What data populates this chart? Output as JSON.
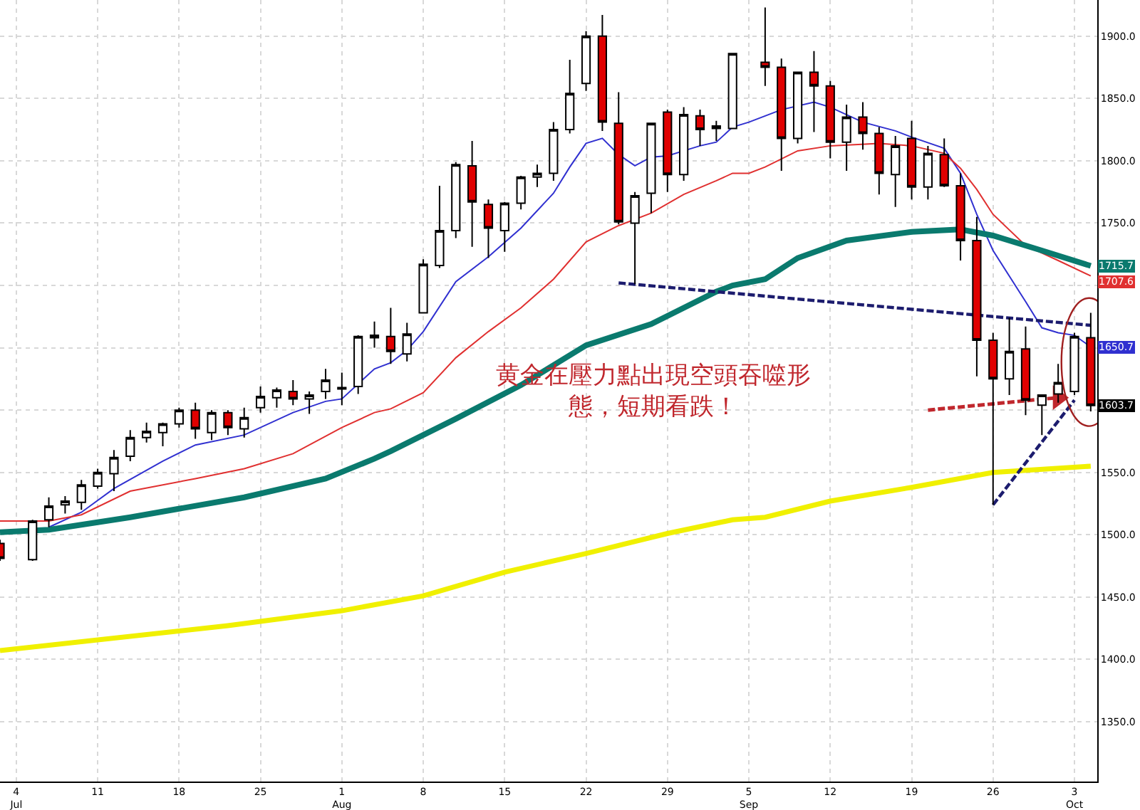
{
  "chart_data": {
    "type": "candlestick",
    "annotations": [
      "黄金在壓力點出現空頭吞噬形態，短期看跌！",
      {
        "text": "1603.7",
        "y": 1603.7
      }
    ],
    "categories": [
      null,
      "4\nJul",
      null,
      null,
      null,
      null,
      "11",
      null,
      null,
      null,
      null,
      "18",
      null,
      null,
      null,
      null,
      "25",
      null,
      null,
      null,
      null,
      "1\nAug",
      null,
      null,
      null,
      null,
      "8",
      null,
      null,
      null,
      null,
      "15",
      null,
      null,
      null,
      null,
      "22",
      null,
      null,
      null,
      null,
      "29",
      null,
      null,
      null,
      null,
      "5\nSep",
      null,
      null,
      null,
      null,
      "12",
      null,
      null,
      null,
      null,
      "19",
      null,
      null,
      null,
      null,
      "26",
      null,
      null,
      null,
      null,
      "3\nOct",
      null
    ],
    "ohlc": [
      [
        1493,
        1496,
        1479,
        1481
      ],
      null,
      [
        1480,
        1512,
        1479,
        1511
      ],
      [
        1512,
        1530,
        1506,
        1523
      ],
      [
        1524,
        1531,
        1517,
        1527
      ],
      [
        1526,
        1544,
        1520,
        1540
      ],
      [
        1539,
        1553,
        1537,
        1550
      ],
      [
        1549,
        1568,
        1535,
        1562
      ],
      [
        1563,
        1584,
        1559,
        1578
      ],
      [
        1578,
        1590,
        1574,
        1583
      ],
      [
        1582,
        1590,
        1571,
        1589
      ],
      [
        1589,
        1602,
        1586,
        1600
      ],
      [
        1600,
        1606,
        1577,
        1585
      ],
      [
        1582,
        1600,
        1576,
        1598
      ],
      [
        1598,
        1600,
        1580,
        1586
      ],
      [
        1585,
        1602,
        1578,
        1594
      ],
      [
        1602,
        1619,
        1598,
        1611
      ],
      [
        1610,
        1618,
        1602,
        1616
      ],
      [
        1615,
        1624,
        1604,
        1609
      ],
      [
        1609,
        1615,
        1597,
        1612
      ],
      [
        1615,
        1633,
        1609,
        1624
      ],
      [
        1617,
        1630,
        1604,
        1618
      ],
      [
        1619,
        1660,
        1613,
        1659
      ],
      [
        1658,
        1671,
        1650,
        1660
      ],
      [
        1659,
        1682,
        1637,
        1647
      ],
      [
        1645,
        1670,
        1639,
        1661
      ],
      [
        1678,
        1721,
        1678,
        1717
      ],
      [
        1716,
        1780,
        1714,
        1744
      ],
      [
        1744,
        1799,
        1738,
        1797
      ],
      [
        1796,
        1816,
        1731,
        1767
      ],
      [
        1765,
        1769,
        1722,
        1746
      ],
      [
        1744,
        1767,
        1727,
        1766
      ],
      [
        1766,
        1788,
        1761,
        1787
      ],
      [
        1787,
        1797,
        1779,
        1790
      ],
      [
        1790,
        1831,
        1784,
        1825
      ],
      [
        1825,
        1881,
        1822,
        1854
      ],
      [
        1862,
        1904,
        1856,
        1900
      ],
      [
        1900,
        1917,
        1824,
        1831
      ],
      [
        1830,
        1855,
        1749,
        1751
      ],
      [
        1750,
        1775,
        1701,
        1772
      ],
      [
        1774,
        1830,
        1758,
        1830
      ],
      [
        1839,
        1841,
        1775,
        1789
      ],
      [
        1789,
        1843,
        1784,
        1837
      ],
      [
        1836,
        1841,
        1812,
        1825
      ],
      [
        1826,
        1832,
        1816,
        1828
      ],
      [
        1826,
        1886,
        1826,
        1886
      ],
      null,
      [
        1879,
        1923,
        1860,
        1875
      ],
      [
        1875,
        1882,
        1792,
        1818
      ],
      [
        1818,
        1871,
        1814,
        1871
      ],
      [
        1871,
        1888,
        1823,
        1860
      ],
      [
        1860,
        1864,
        1802,
        1815
      ],
      [
        1815,
        1845,
        1792,
        1835
      ],
      [
        1835,
        1847,
        1809,
        1822
      ],
      [
        1822,
        1827,
        1773,
        1790
      ],
      [
        1789,
        1820,
        1763,
        1812
      ],
      [
        1818,
        1832,
        1769,
        1779
      ],
      [
        1779,
        1812,
        1769,
        1806
      ],
      [
        1805,
        1818,
        1779,
        1780
      ],
      [
        1780,
        1790,
        1720,
        1736
      ],
      [
        1736,
        1755,
        1627,
        1656
      ],
      [
        1656,
        1662,
        1524,
        1625
      ],
      [
        1625,
        1674,
        1612,
        1647
      ],
      [
        1649,
        1667,
        1596,
        1608
      ],
      [
        1604,
        1612,
        1580,
        1612
      ],
      [
        1613,
        1637,
        1606,
        1622
      ],
      [
        1615,
        1662,
        1612,
        1659
      ],
      [
        1658,
        1678,
        1599,
        1603.7
      ]
    ],
    "series": [
      {
        "type": "line",
        "color": "#3030d0",
        "values": [
          null,
          null,
          null,
          1506,
          null,
          1518,
          null,
          1537,
          null,
          null,
          1559,
          null,
          1572,
          null,
          null,
          1580,
          null,
          null,
          1598,
          null,
          1607,
          1609,
          null,
          1633,
          1638,
          1648,
          1663,
          null,
          1703,
          null,
          1723,
          null,
          1746,
          null,
          1774,
          1795,
          1814,
          1818,
          1805,
          1796,
          1803,
          1804,
          1808,
          1812,
          1815,
          1827,
          1831,
          1836,
          1841,
          null,
          1847,
          1843,
          null,
          1831,
          null,
          1824,
          1819,
          null,
          1810,
          1790,
          1757,
          1728,
          null,
          1687,
          1666,
          1662,
          1660,
          1650.7
        ],
        "value_labels": [
          null,
          null,
          null,
          null,
          null,
          null,
          null,
          null,
          null,
          null,
          null,
          null,
          null,
          null,
          null,
          null,
          null,
          null,
          null,
          null,
          null,
          null,
          null,
          null,
          null,
          null,
          null,
          null,
          null,
          null,
          null,
          null,
          null,
          null,
          null,
          null,
          null,
          null,
          null,
          null,
          null,
          null,
          null,
          null,
          null,
          null,
          null,
          null,
          null,
          null,
          null,
          null,
          null,
          null,
          null,
          null,
          null,
          null,
          null,
          null,
          null,
          null,
          null,
          null,
          null,
          null,
          null,
          "1650.7"
        ]
      },
      {
        "type": "line",
        "color": "#e03030",
        "values": [
          1511,
          null,
          null,
          1511,
          null,
          1516,
          null,
          null,
          1535,
          null,
          null,
          null,
          1545,
          null,
          null,
          1553,
          null,
          null,
          1565,
          null,
          null,
          1586,
          null,
          1598,
          1601,
          null,
          1614,
          null,
          1642,
          null,
          1663,
          null,
          1682,
          null,
          1705,
          null,
          1735,
          null,
          1748,
          null,
          1758,
          null,
          1773,
          null,
          1784,
          1790,
          1790,
          1795,
          null,
          1808,
          null,
          1812,
          null,
          null,
          1814,
          null,
          1812,
          null,
          1806,
          1794,
          1777,
          1757,
          null,
          1732,
          null,
          1720,
          null,
          1707.6
        ],
        "value_labels": [
          null,
          null,
          null,
          null,
          null,
          null,
          null,
          null,
          null,
          null,
          null,
          null,
          null,
          null,
          null,
          null,
          null,
          null,
          null,
          null,
          null,
          null,
          null,
          null,
          null,
          null,
          null,
          null,
          null,
          null,
          null,
          null,
          null,
          null,
          null,
          null,
          null,
          null,
          null,
          null,
          null,
          null,
          null,
          null,
          null,
          null,
          null,
          null,
          null,
          null,
          null,
          null,
          null,
          null,
          null,
          null,
          null,
          null,
          null,
          null,
          null,
          null,
          null,
          null,
          null,
          null,
          null,
          "1707.6"
        ]
      },
      {
        "type": "line",
        "color": "#0a7a6e",
        "values": [
          1502,
          null,
          null,
          1504,
          null,
          null,
          null,
          null,
          1514,
          null,
          null,
          null,
          null,
          null,
          null,
          1530,
          null,
          null,
          null,
          null,
          1545,
          null,
          null,
          1561,
          1567,
          null,
          null,
          null,
          1593,
          null,
          null,
          null,
          1620,
          null,
          null,
          null,
          1652,
          null,
          null,
          null,
          1669,
          null,
          null,
          null,
          1695,
          1700,
          null,
          1705,
          null,
          1722,
          null,
          null,
          1736,
          null,
          null,
          null,
          1743,
          null,
          null,
          1745,
          null,
          1740,
          null,
          null,
          1728,
          null,
          null,
          1715.7
        ],
        "value_labels": [
          null,
          null,
          null,
          null,
          null,
          null,
          null,
          null,
          null,
          null,
          null,
          null,
          null,
          null,
          null,
          null,
          null,
          null,
          null,
          null,
          null,
          null,
          null,
          null,
          null,
          null,
          null,
          null,
          null,
          null,
          null,
          null,
          null,
          null,
          null,
          null,
          null,
          null,
          null,
          null,
          null,
          null,
          null,
          null,
          null,
          null,
          null,
          null,
          null,
          null,
          null,
          null,
          null,
          null,
          null,
          null,
          null,
          null,
          null,
          null,
          null,
          null,
          null,
          null,
          null,
          null,
          null,
          "1715.7"
        ]
      },
      {
        "type": "line",
        "color": "#f0f000",
        "values": [
          1407,
          null,
          null,
          null,
          null,
          null,
          null,
          null,
          null,
          null,
          null,
          null,
          null,
          null,
          1427,
          null,
          null,
          null,
          null,
          null,
          null,
          1439,
          null,
          null,
          null,
          null,
          1451,
          null,
          null,
          null,
          null,
          1470,
          null,
          null,
          null,
          null,
          1485,
          null,
          null,
          null,
          null,
          1501,
          null,
          null,
          null,
          1512,
          null,
          1514,
          null,
          null,
          null,
          1527,
          null,
          null,
          null,
          null,
          1538,
          null,
          null,
          null,
          null,
          1550,
          null,
          null,
          null,
          null,
          null,
          1555
        ]
      },
      {
        "type": "line",
        "color": "#1c1c6e",
        "line_style": "dashed",
        "values": [
          null,
          null,
          null,
          null,
          null,
          null,
          null,
          null,
          null,
          null,
          null,
          null,
          null,
          null,
          null,
          null,
          null,
          null,
          null,
          null,
          null,
          null,
          null,
          null,
          null,
          null,
          null,
          null,
          null,
          null,
          null,
          null,
          null,
          null,
          null,
          null,
          null,
          null,
          1702,
          null,
          null,
          null,
          null,
          null,
          null,
          null,
          null,
          null,
          null,
          null,
          null,
          null,
          null,
          null,
          null,
          null,
          null,
          null,
          null,
          null,
          null,
          null,
          null,
          null,
          null,
          null,
          null,
          1668
        ]
      },
      {
        "type": "line",
        "color": "#1c1c6e",
        "line_style": "dashed",
        "values": [
          null,
          null,
          null,
          null,
          null,
          null,
          null,
          null,
          null,
          null,
          null,
          null,
          null,
          null,
          null,
          null,
          null,
          null,
          null,
          null,
          null,
          null,
          null,
          null,
          null,
          null,
          null,
          null,
          null,
          null,
          null,
          null,
          null,
          null,
          null,
          null,
          null,
          null,
          null,
          null,
          null,
          null,
          null,
          null,
          null,
          null,
          null,
          null,
          null,
          null,
          null,
          null,
          null,
          null,
          null,
          null,
          null,
          null,
          null,
          null,
          null,
          1524,
          null,
          null,
          null,
          null,
          1608,
          null
        ]
      },
      {
        "type": "line",
        "color": "#c0272d",
        "line_style": "dashed",
        "marker": "triangle",
        "values": [
          null,
          null,
          null,
          null,
          null,
          null,
          null,
          null,
          null,
          null,
          null,
          null,
          null,
          null,
          null,
          null,
          null,
          null,
          null,
          null,
          null,
          null,
          null,
          null,
          null,
          null,
          null,
          null,
          null,
          null,
          null,
          null,
          null,
          null,
          null,
          null,
          null,
          null,
          null,
          null,
          null,
          null,
          null,
          null,
          null,
          null,
          null,
          null,
          null,
          null,
          null,
          null,
          null,
          null,
          null,
          null,
          null,
          1600,
          null,
          null,
          null,
          null,
          null,
          null,
          null,
          1610,
          null,
          null
        ]
      }
    ],
    "ylim": [
      1302,
      1929
    ],
    "yticks": [
      {
        "value": 1350,
        "label": "1350.0"
      },
      {
        "value": 1400,
        "label": "1400.0"
      },
      {
        "value": 1450,
        "label": "1450.0"
      },
      {
        "value": 1500,
        "label": "1500.0"
      },
      {
        "value": 1550,
        "label": "1550.0"
      },
      {
        "value": 1600,
        "label": null
      },
      {
        "value": 1650,
        "label": null
      },
      {
        "value": 1700,
        "label": null
      },
      {
        "value": 1750,
        "label": "1750.0"
      },
      {
        "value": 1800,
        "label": "1800.0"
      },
      {
        "value": 1850,
        "label": "1850.0"
      },
      {
        "value": 1900,
        "label": "1900.0"
      }
    ],
    "grid": true
  }
}
